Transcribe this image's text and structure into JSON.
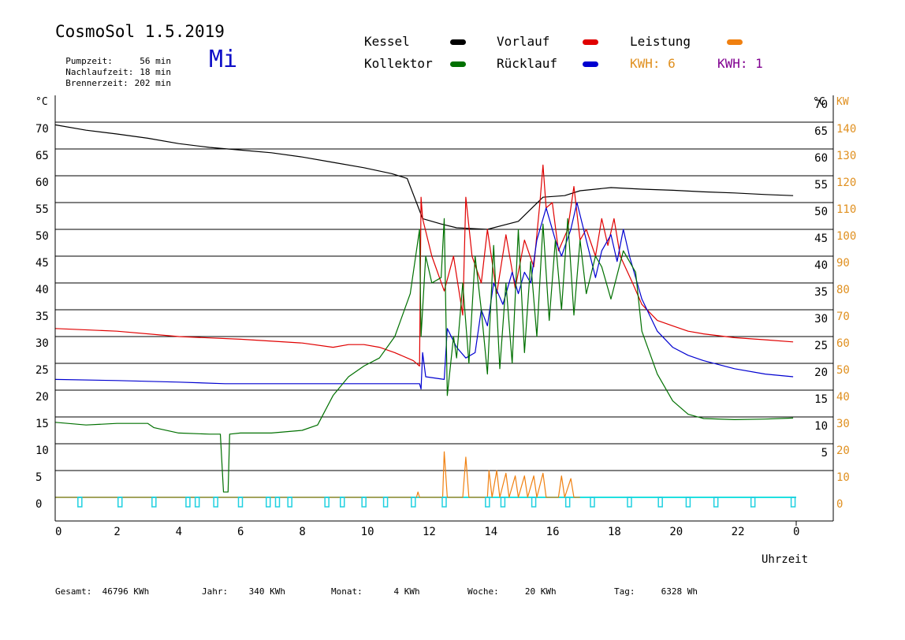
{
  "header": {
    "title": "CosmoSol 1.5.2019",
    "weekday": "Mi",
    "info": [
      {
        "label": "Pumpzeit:",
        "value": "56 min"
      },
      {
        "label": "Nachlaufzeit:",
        "value": "18 min"
      },
      {
        "label": "Brennerzeit:",
        "value": "202 min"
      }
    ]
  },
  "legend": {
    "kessel": {
      "label": "Kessel",
      "color": "#000000"
    },
    "vorlauf": {
      "label": "Vorlauf",
      "color": "#e00000"
    },
    "leistung": {
      "label": "Leistung",
      "color": "#f08010"
    },
    "kollektor": {
      "label": "Kollektor",
      "color": "#007000"
    },
    "ruecklauf": {
      "label": "Rücklauf",
      "color": "#0000d0"
    },
    "kwh_orange": "KWH: 6",
    "kwh_purple": "KWH: 1"
  },
  "axes": {
    "left_unit": "°C",
    "right_unit_c": "°C",
    "right_unit_kw": "KW",
    "left_ticks": [
      0,
      5,
      10,
      15,
      20,
      25,
      30,
      35,
      40,
      45,
      50,
      55,
      60,
      65,
      70
    ],
    "right_ticks_c": [
      5,
      10,
      15,
      20,
      25,
      30,
      35,
      40,
      45,
      50,
      55,
      60,
      65,
      70
    ],
    "right_ticks_kw": [
      0,
      10,
      20,
      30,
      40,
      50,
      60,
      70,
      80,
      90,
      100,
      110,
      120,
      130,
      140
    ],
    "x_ticks": [
      "0",
      "2",
      "4",
      "6",
      "8",
      "10",
      "12",
      "14",
      "16",
      "18",
      "20",
      "22",
      "0"
    ],
    "xlabel": "Uhrzeit"
  },
  "summary": [
    {
      "label": "Gesamt:",
      "value": "46796 KWh"
    },
    {
      "label": "Jahr:",
      "value": "340 KWh"
    },
    {
      "label": "Monat:",
      "value": "4 KWh"
    },
    {
      "label": "Woche:",
      "value": "20 KWh"
    },
    {
      "label": "Tag:",
      "value": "6328 Wh"
    }
  ],
  "chart_data": {
    "type": "line",
    "xlabel": "Uhrzeit",
    "ylabel": "°C",
    "xlim": [
      0,
      24
    ],
    "ylim": [
      -3,
      72
    ],
    "grid": true,
    "series": [
      {
        "name": "Kessel",
        "color": "#000000",
        "points": [
          [
            0,
            69.5
          ],
          [
            1,
            68.5
          ],
          [
            2,
            67.8
          ],
          [
            3,
            67
          ],
          [
            4,
            66
          ],
          [
            5,
            65.3
          ],
          [
            6,
            64.8
          ],
          [
            7,
            64.3
          ],
          [
            8,
            63.5
          ],
          [
            9,
            62.5
          ],
          [
            10,
            61.5
          ],
          [
            10.9,
            60.4
          ],
          [
            11.4,
            59.5
          ],
          [
            11.7,
            55
          ],
          [
            11.9,
            52
          ],
          [
            12.5,
            51
          ],
          [
            13,
            50.3
          ],
          [
            14,
            50
          ],
          [
            15,
            51.5
          ],
          [
            15.8,
            56
          ],
          [
            16.5,
            56.3
          ],
          [
            17,
            57.2
          ],
          [
            18,
            57.8
          ],
          [
            19,
            57.5
          ],
          [
            20,
            57.3
          ],
          [
            21,
            57
          ],
          [
            22,
            56.8
          ],
          [
            23,
            56.5
          ],
          [
            23.9,
            56.3
          ]
        ]
      },
      {
        "name": "Vorlauf",
        "color": "#e00000",
        "points": [
          [
            0,
            31.5
          ],
          [
            2,
            31
          ],
          [
            4,
            30
          ],
          [
            6,
            29.5
          ],
          [
            8,
            28.8
          ],
          [
            9,
            28
          ],
          [
            9.5,
            28.5
          ],
          [
            10,
            28.5
          ],
          [
            10.5,
            28
          ],
          [
            11,
            27
          ],
          [
            11.6,
            25.5
          ],
          [
            11.8,
            24.5
          ],
          [
            11.85,
            56
          ],
          [
            11.9,
            52
          ],
          [
            12.2,
            45
          ],
          [
            12.6,
            38.5
          ],
          [
            12.9,
            45
          ],
          [
            13.2,
            34
          ],
          [
            13.3,
            56
          ],
          [
            13.5,
            45
          ],
          [
            13.8,
            40
          ],
          [
            14,
            50
          ],
          [
            14.3,
            38
          ],
          [
            14.6,
            49
          ],
          [
            14.9,
            39
          ],
          [
            15.2,
            48
          ],
          [
            15.5,
            43
          ],
          [
            15.7,
            55
          ],
          [
            15.8,
            62
          ],
          [
            15.9,
            54
          ],
          [
            16.1,
            55
          ],
          [
            16.3,
            46
          ],
          [
            16.6,
            50
          ],
          [
            16.8,
            58
          ],
          [
            17,
            48
          ],
          [
            17.2,
            50
          ],
          [
            17.5,
            45
          ],
          [
            17.7,
            52
          ],
          [
            17.9,
            47
          ],
          [
            18.1,
            52
          ],
          [
            18.3,
            45
          ],
          [
            18.7,
            40
          ],
          [
            19,
            36
          ],
          [
            19.5,
            33
          ],
          [
            20,
            32
          ],
          [
            20.5,
            31
          ],
          [
            21,
            30.5
          ],
          [
            22,
            29.8
          ],
          [
            23,
            29.4
          ],
          [
            23.9,
            29
          ]
        ]
      },
      {
        "name": "Rücklauf",
        "color": "#0000d0",
        "points": [
          [
            0,
            22
          ],
          [
            2,
            21.8
          ],
          [
            4,
            21.5
          ],
          [
            5.5,
            21.2
          ],
          [
            6,
            21.2
          ],
          [
            8,
            21.2
          ],
          [
            10,
            21.2
          ],
          [
            11.8,
            21.2
          ],
          [
            11.85,
            20.2
          ],
          [
            11.9,
            27
          ],
          [
            12,
            22.5
          ],
          [
            12.6,
            22
          ],
          [
            12.7,
            31.5
          ],
          [
            13,
            28
          ],
          [
            13.3,
            26
          ],
          [
            13.6,
            27
          ],
          [
            13.8,
            35
          ],
          [
            14,
            32
          ],
          [
            14.2,
            40
          ],
          [
            14.5,
            36
          ],
          [
            14.8,
            42
          ],
          [
            15,
            38
          ],
          [
            15.2,
            42
          ],
          [
            15.4,
            40
          ],
          [
            15.6,
            48
          ],
          [
            15.9,
            54
          ],
          [
            16.2,
            48
          ],
          [
            16.4,
            45
          ],
          [
            16.7,
            50
          ],
          [
            16.9,
            55
          ],
          [
            17.2,
            48
          ],
          [
            17.5,
            41
          ],
          [
            17.7,
            46
          ],
          [
            18,
            49
          ],
          [
            18.2,
            44
          ],
          [
            18.4,
            50
          ],
          [
            18.6,
            45
          ],
          [
            19,
            37
          ],
          [
            19.5,
            31
          ],
          [
            20,
            28
          ],
          [
            20.5,
            26.5
          ],
          [
            21,
            25.5
          ],
          [
            22,
            24
          ],
          [
            23,
            23
          ],
          [
            23.9,
            22.5
          ]
        ]
      },
      {
        "name": "Kollektor",
        "color": "#007000",
        "points": [
          [
            0,
            14
          ],
          [
            1,
            13.5
          ],
          [
            2,
            13.8
          ],
          [
            3,
            13.8
          ],
          [
            3.2,
            13
          ],
          [
            4,
            12
          ],
          [
            5,
            11.8
          ],
          [
            5.35,
            11.8
          ],
          [
            5.45,
            1
          ],
          [
            5.6,
            1
          ],
          [
            5.65,
            11.8
          ],
          [
            6,
            12
          ],
          [
            7,
            12
          ],
          [
            8,
            12.5
          ],
          [
            8.5,
            13.5
          ],
          [
            9,
            19
          ],
          [
            9.5,
            22.5
          ],
          [
            10,
            24.5
          ],
          [
            10.5,
            26
          ],
          [
            11,
            30
          ],
          [
            11.5,
            38
          ],
          [
            11.8,
            50
          ],
          [
            11.85,
            30
          ],
          [
            12,
            45
          ],
          [
            12.2,
            40
          ],
          [
            12.5,
            41
          ],
          [
            12.6,
            52
          ],
          [
            12.7,
            19
          ],
          [
            12.9,
            30
          ],
          [
            13,
            26
          ],
          [
            13.2,
            40
          ],
          [
            13.4,
            25
          ],
          [
            13.6,
            45
          ],
          [
            13.8,
            35
          ],
          [
            14,
            23
          ],
          [
            14.2,
            47
          ],
          [
            14.4,
            24
          ],
          [
            14.6,
            40
          ],
          [
            14.8,
            25
          ],
          [
            15,
            50
          ],
          [
            15.2,
            27
          ],
          [
            15.4,
            44
          ],
          [
            15.6,
            30
          ],
          [
            15.8,
            51
          ],
          [
            16,
            33
          ],
          [
            16.2,
            48
          ],
          [
            16.4,
            35
          ],
          [
            16.6,
            52
          ],
          [
            16.8,
            34
          ],
          [
            17,
            48
          ],
          [
            17.2,
            38
          ],
          [
            17.5,
            45
          ],
          [
            17.7,
            43
          ],
          [
            18,
            37
          ],
          [
            18.4,
            46
          ],
          [
            18.6,
            44
          ],
          [
            18.8,
            42
          ],
          [
            19,
            31
          ],
          [
            19.5,
            23
          ],
          [
            20,
            18
          ],
          [
            20.5,
            15.5
          ],
          [
            21,
            14.7
          ],
          [
            22,
            14.5
          ],
          [
            23,
            14.6
          ],
          [
            23.9,
            14.8
          ]
        ]
      },
      {
        "name": "Leistung",
        "color": "#f08010",
        "axis": "KW",
        "points": [
          [
            0,
            0
          ],
          [
            11.7,
            0
          ],
          [
            11.75,
            2
          ],
          [
            11.8,
            0
          ],
          [
            12.55,
            0
          ],
          [
            12.6,
            17
          ],
          [
            12.7,
            0
          ],
          [
            13.2,
            0
          ],
          [
            13.3,
            15
          ],
          [
            13.4,
            0
          ],
          [
            14,
            0
          ],
          [
            14.05,
            10
          ],
          [
            14.15,
            0
          ],
          [
            14.3,
            10
          ],
          [
            14.4,
            0
          ],
          [
            14.6,
            9
          ],
          [
            14.7,
            0
          ],
          [
            14.9,
            8
          ],
          [
            15,
            0
          ],
          [
            15.2,
            8
          ],
          [
            15.3,
            0
          ],
          [
            15.5,
            8
          ],
          [
            15.6,
            0
          ],
          [
            15.8,
            9
          ],
          [
            15.9,
            0
          ],
          [
            16.3,
            0
          ],
          [
            16.4,
            8
          ],
          [
            16.5,
            0
          ],
          [
            16.7,
            7
          ],
          [
            16.8,
            0
          ],
          [
            17,
            0
          ]
        ]
      }
    ]
  }
}
